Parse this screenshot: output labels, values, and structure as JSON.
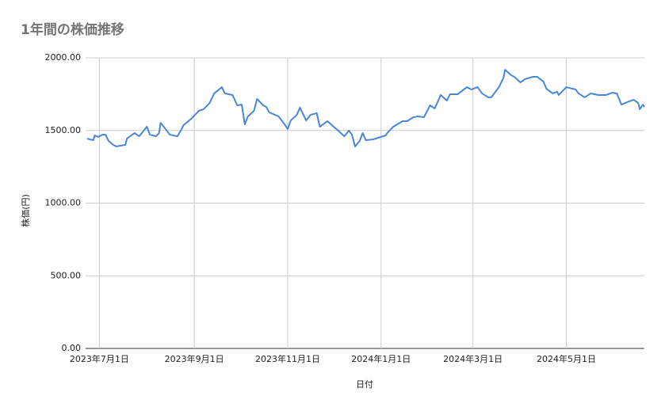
{
  "chart_data": {
    "type": "line",
    "title": "1年間の株価推移",
    "x_label": "日付",
    "y_label": "株価(円)",
    "x": [
      "2023-06-23",
      "2023-06-27",
      "2023-06-28",
      "2023-06-30",
      "2023-07-03",
      "2023-07-05",
      "2023-07-07",
      "2023-07-10",
      "2023-07-12",
      "2023-07-18",
      "2023-07-19",
      "2023-07-21",
      "2023-07-24",
      "2023-07-27",
      "2023-08-01",
      "2023-08-03",
      "2023-08-07",
      "2023-08-09",
      "2023-08-10",
      "2023-08-14",
      "2023-08-16",
      "2023-08-21",
      "2023-08-24",
      "2023-08-25",
      "2023-08-30",
      "2023-09-04",
      "2023-09-07",
      "2023-09-11",
      "2023-09-14",
      "2023-09-19",
      "2023-09-21",
      "2023-09-26",
      "2023-09-29",
      "2023-10-02",
      "2023-10-04",
      "2023-10-06",
      "2023-10-10",
      "2023-10-12",
      "2023-10-16",
      "2023-10-18",
      "2023-10-20",
      "2023-10-26",
      "2023-10-30",
      "2023-11-01",
      "2023-11-03",
      "2023-11-07",
      "2023-11-09",
      "2023-11-13",
      "2023-11-16",
      "2023-11-20",
      "2023-11-22",
      "2023-11-27",
      "2023-12-01",
      "2023-12-04",
      "2023-12-08",
      "2023-12-11",
      "2023-12-13",
      "2023-12-15",
      "2023-12-18",
      "2023-12-20",
      "2023-12-22",
      "2023-12-27",
      "2024-01-04",
      "2024-01-05",
      "2024-01-09",
      "2024-01-15",
      "2024-01-18",
      "2024-01-22",
      "2024-01-25",
      "2024-01-29",
      "2024-02-02",
      "2024-02-05",
      "2024-02-09",
      "2024-02-13",
      "2024-02-15",
      "2024-02-20",
      "2024-02-26",
      "2024-02-29",
      "2024-03-04",
      "2024-03-07",
      "2024-03-11",
      "2024-03-13",
      "2024-03-18",
      "2024-03-21",
      "2024-03-22",
      "2024-03-26",
      "2024-03-28",
      "2024-04-01",
      "2024-04-04",
      "2024-04-09",
      "2024-04-12",
      "2024-04-16",
      "2024-04-18",
      "2024-04-22",
      "2024-04-25",
      "2024-04-26",
      "2024-05-01",
      "2024-05-07",
      "2024-05-09",
      "2024-05-13",
      "2024-05-17",
      "2024-05-22",
      "2024-05-27",
      "2024-05-31",
      "2024-06-03",
      "2024-06-06",
      "2024-06-11",
      "2024-06-14",
      "2024-06-17",
      "2024-06-18",
      "2024-06-20",
      "2024-06-21"
    ],
    "series": [
      {
        "name": "株価",
        "color": "#4a86d8",
        "values": [
          1444,
          1433,
          1466,
          1455,
          1471,
          1471,
          1428,
          1401,
          1390,
          1401,
          1444,
          1460,
          1482,
          1460,
          1526,
          1471,
          1460,
          1482,
          1553,
          1499,
          1471,
          1460,
          1515,
          1537,
          1580,
          1635,
          1646,
          1689,
          1755,
          1798,
          1755,
          1744,
          1673,
          1678,
          1542,
          1597,
          1635,
          1717,
          1673,
          1662,
          1624,
          1597,
          1542,
          1510,
          1569,
          1608,
          1657,
          1569,
          1608,
          1619,
          1526,
          1564,
          1526,
          1499,
          1460,
          1499,
          1471,
          1390,
          1428,
          1482,
          1433,
          1439,
          1466,
          1482,
          1526,
          1564,
          1564,
          1591,
          1597,
          1591,
          1673,
          1651,
          1744,
          1706,
          1749,
          1749,
          1798,
          1782,
          1798,
          1755,
          1728,
          1728,
          1798,
          1864,
          1918,
          1880,
          1869,
          1831,
          1853,
          1869,
          1869,
          1837,
          1787,
          1755,
          1766,
          1744,
          1798,
          1782,
          1755,
          1728,
          1755,
          1744,
          1744,
          1760,
          1755,
          1678,
          1700,
          1711,
          1689,
          1646,
          1678,
          1662
        ]
      }
    ],
    "xlim": [
      "2023-06-22",
      "2024-06-21"
    ],
    "xticks": [
      {
        "value": "2023-07-01",
        "label": "2023年7月1日"
      },
      {
        "value": "2023-09-01",
        "label": "2023年9月1日"
      },
      {
        "value": "2023-11-01",
        "label": "2023年11月1日"
      },
      {
        "value": "2024-01-01",
        "label": "2024年1月1日"
      },
      {
        "value": "2024-03-01",
        "label": "2024年3月1日"
      },
      {
        "value": "2024-05-01",
        "label": "2024年5月1日"
      }
    ],
    "ylim": [
      0,
      2000
    ],
    "yticks": [
      {
        "value": 0,
        "label": "0.00"
      },
      {
        "value": 500,
        "label": "500.00"
      },
      {
        "value": 1000,
        "label": "1000.00"
      },
      {
        "value": 1500,
        "label": "1500.00"
      },
      {
        "value": 2000,
        "label": "2000.00"
      }
    ],
    "grid": true
  }
}
